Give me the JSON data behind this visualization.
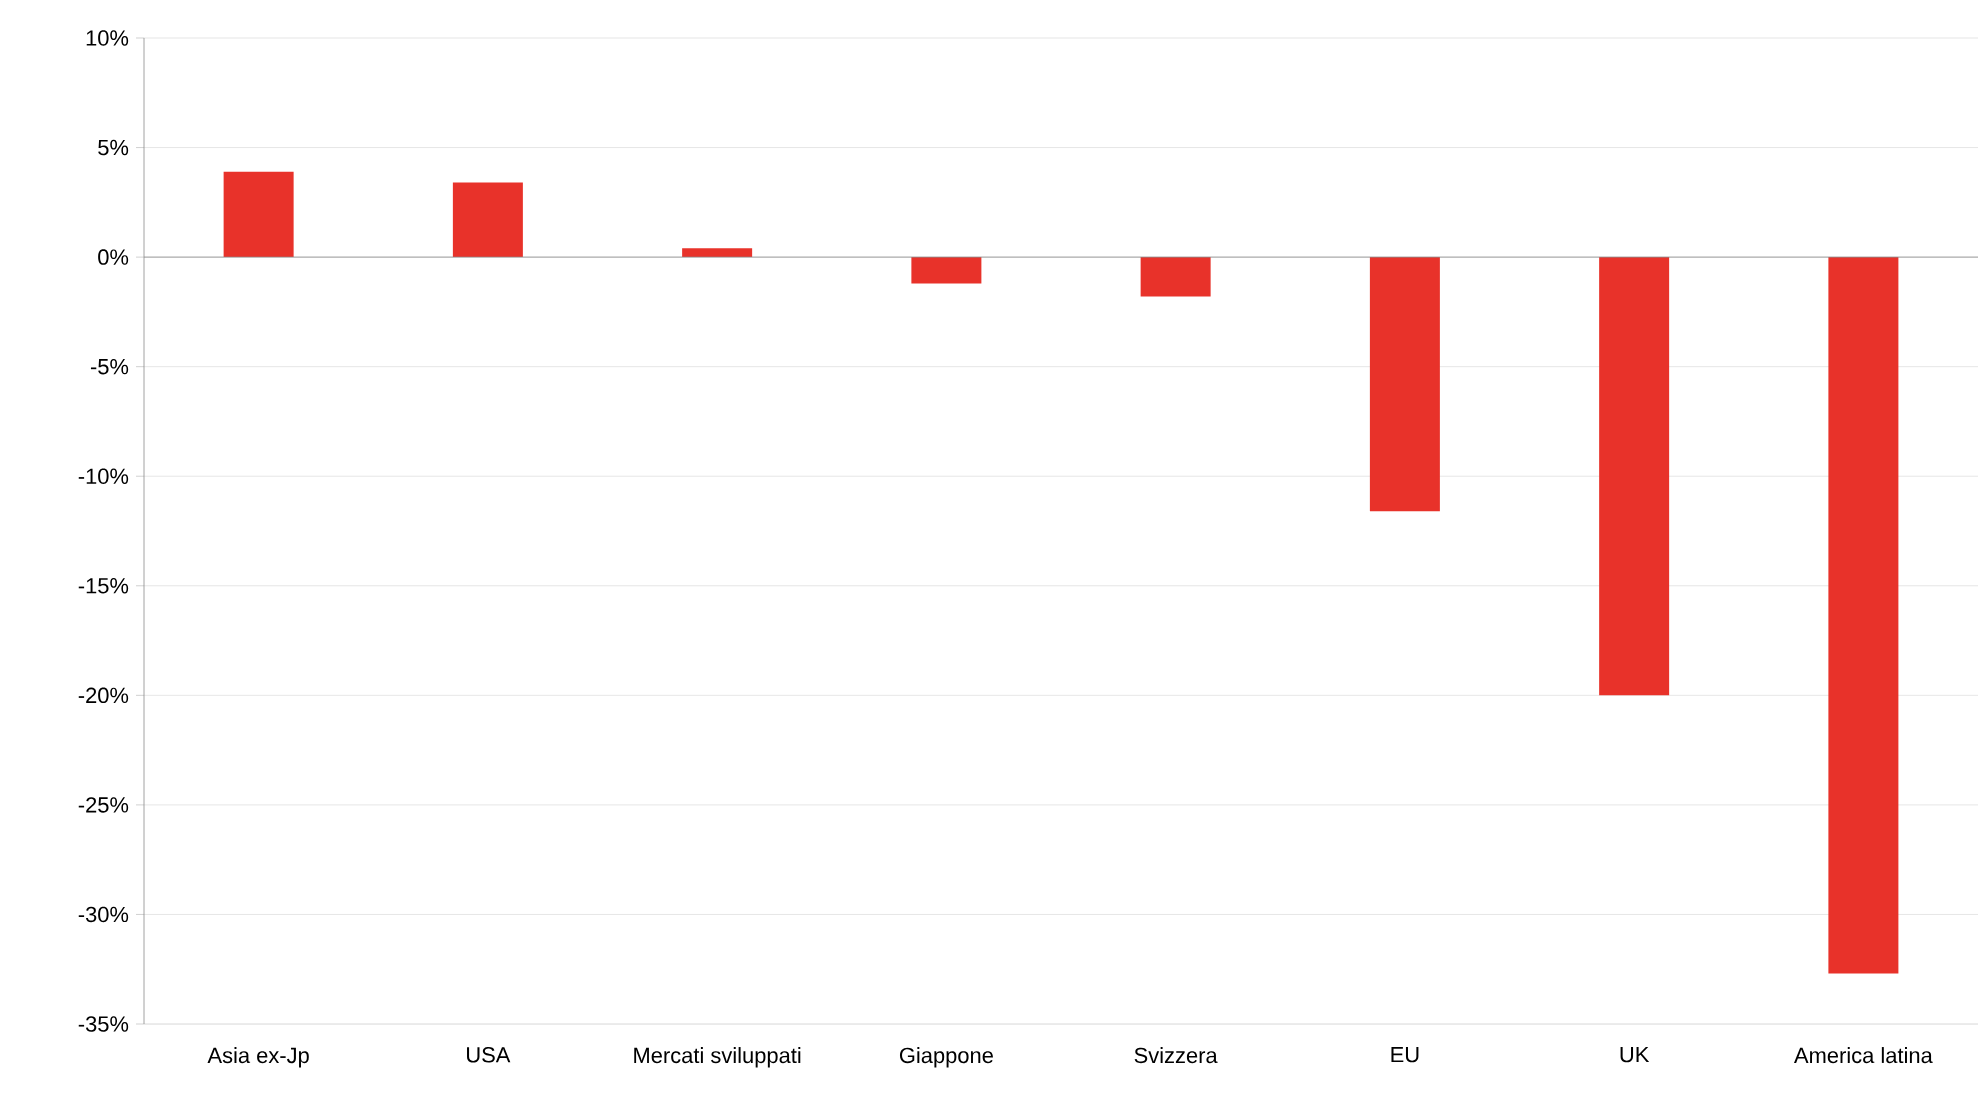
{
  "chart_data": {
    "type": "bar",
    "categories": [
      "Asia ex-Jp",
      "USA",
      "Mercati sviluppati",
      "Giappone",
      "Svizzera",
      "EU",
      "UK",
      "America latina"
    ],
    "values": [
      3.9,
      3.4,
      0.4,
      -1.2,
      -1.8,
      -11.6,
      -20.0,
      -32.7
    ],
    "color": "#e8322a",
    "ylim": [
      -35,
      10
    ],
    "yticks": [
      {
        "value": 10,
        "label": "10%"
      },
      {
        "value": 5,
        "label": "5%"
      },
      {
        "value": 0,
        "label": "0%"
      },
      {
        "value": -5,
        "label": "-5%"
      },
      {
        "value": -10,
        "label": "-10%"
      },
      {
        "value": -15,
        "label": "-15%"
      },
      {
        "value": -20,
        "label": "-20%"
      },
      {
        "value": -25,
        "label": "-25%"
      },
      {
        "value": -30,
        "label": "-30%"
      },
      {
        "value": -35,
        "label": "-35%"
      }
    ],
    "grid": "y"
  }
}
